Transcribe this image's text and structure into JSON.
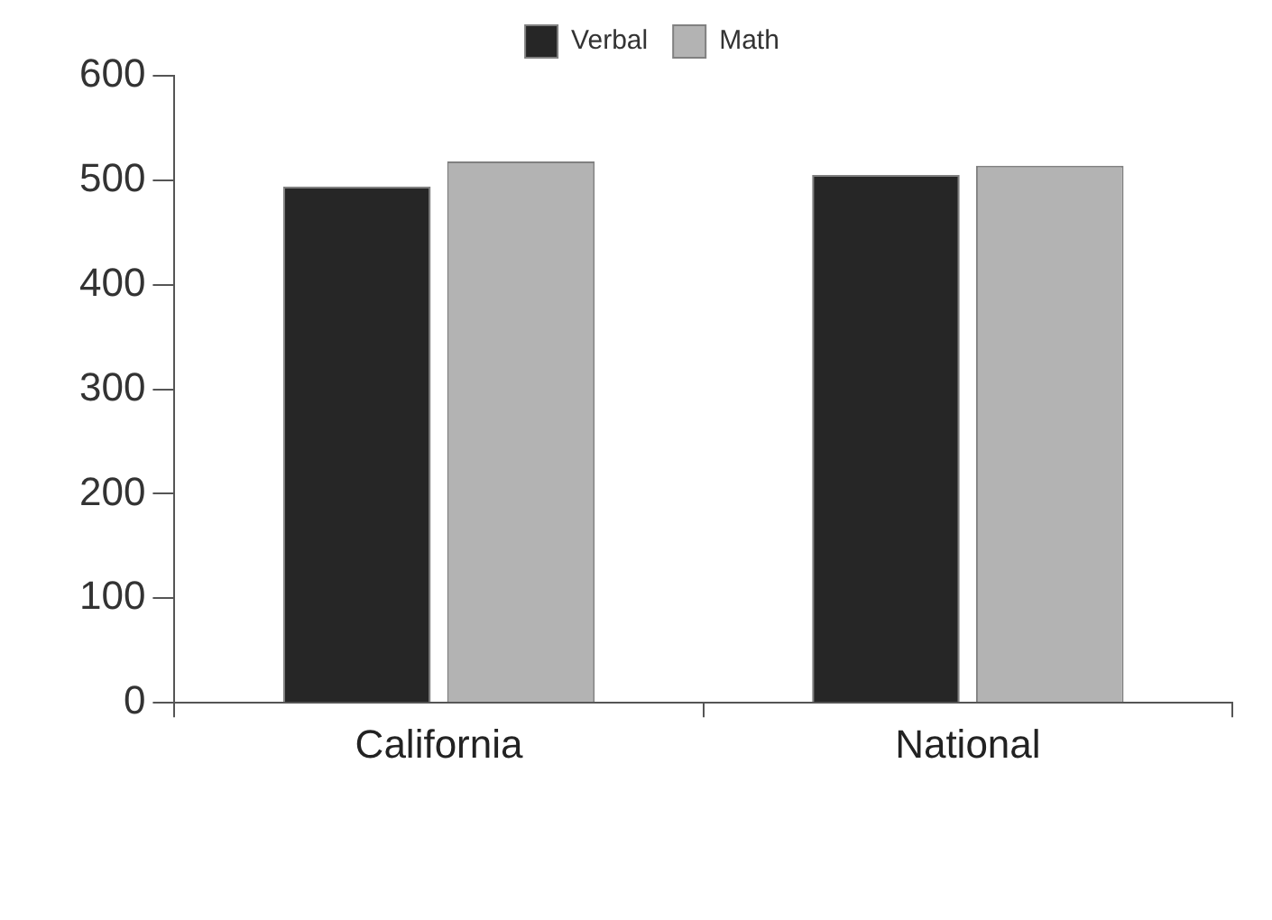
{
  "chart_data": {
    "type": "bar",
    "categories": [
      "California",
      "National"
    ],
    "series": [
      {
        "name": "Verbal",
        "color": "#262626",
        "values": [
          494,
          505
        ]
      },
      {
        "name": "Math",
        "color": "#b3b3b3",
        "values": [
          518,
          514
        ]
      }
    ],
    "ylim": [
      0,
      600
    ],
    "yticks": [
      0,
      100,
      200,
      300,
      400,
      500,
      600
    ],
    "grid": false,
    "legend": "top"
  }
}
